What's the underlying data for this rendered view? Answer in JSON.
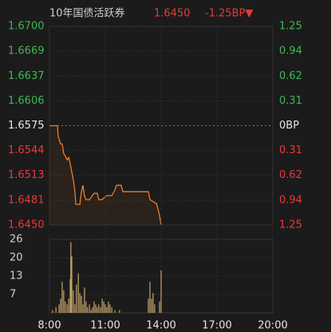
{
  "header": {
    "name": "10年国债活跃券",
    "price": "1.6450",
    "change": "-1.25BP▼"
  },
  "chart_data": [
    {
      "type": "line",
      "up_color": "#3cba54",
      "down_color": "#e83a3a",
      "base": 1.6575,
      "grid": true,
      "series": [
        {
          "color": "#f07c2a",
          "x": [
            "8:00",
            "8:26",
            "8:28",
            "8:36",
            "8:41",
            "8:46",
            "8:51",
            "8:57",
            "9:02",
            "9:07",
            "9:12",
            "9:17",
            "9:22",
            "9:25",
            "9:38",
            "9:43",
            "9:48",
            "9:53",
            "9:58",
            "10:09",
            "10:24",
            "10:34",
            "10:39",
            "10:50",
            "10:55",
            "11:05",
            "11:21",
            "11:31",
            "11:36",
            "11:51",
            "11:57",
            "13:19",
            "13:24",
            "13:45",
            "13:50",
            "13:55",
            "14:00"
          ],
          "values": [
            1.6575,
            1.6575,
            1.6562,
            1.6552,
            1.6552,
            1.654,
            1.6537,
            1.6532,
            1.6535,
            1.6527,
            1.6517,
            1.6507,
            1.6492,
            1.6476,
            1.6476,
            1.6492,
            1.65,
            1.6487,
            1.6482,
            1.6482,
            1.649,
            1.649,
            1.6482,
            1.6482,
            1.6484,
            1.6487,
            1.6487,
            1.6494,
            1.65,
            1.65,
            1.6492,
            1.6492,
            1.6482,
            1.6477,
            1.647,
            1.6462,
            1.645
          ]
        }
      ],
      "xlim": [
        "8:00",
        "20:00"
      ],
      "ylim": [
        1.645,
        1.67
      ],
      "yticks": [
        {
          "value": 1.67,
          "label": "1.6700"
        },
        1.6669,
        1.6637,
        1.6606,
        1.6575,
        1.6544,
        1.6513,
        1.6481,
        {
          "value": 1.645,
          "label": "1.6450"
        }
      ],
      "y2lim": [
        -1.25,
        1.25
      ],
      "y2ticks": [
        1.25,
        0.94,
        0.62,
        0.31,
        {
          "value": 0,
          "label": "0BP"
        },
        {
          "value": -0.31,
          "label": "0.31"
        },
        {
          "value": -0.62,
          "label": "0.62"
        },
        {
          "value": -0.94,
          "label": "0.94"
        },
        {
          "value": -1.25,
          "label": "1.25"
        }
      ]
    },
    {
      "type": "bar",
      "color": "#c9a66b",
      "grid": true,
      "x": [
        "8:10",
        "8:21",
        "8:31",
        "8:36",
        "8:41",
        "8:46",
        "8:51",
        "8:57",
        "9:02",
        "9:07",
        "9:09",
        "9:12",
        "9:17",
        "9:22",
        "9:27",
        "9:33",
        "9:38",
        "9:43",
        "9:48",
        "9:53",
        "9:58",
        "10:03",
        "10:09",
        "10:14",
        "10:19",
        "10:24",
        "10:29",
        "10:34",
        "10:39",
        "10:45",
        "10:50",
        "10:55",
        "11:00",
        "11:05",
        "11:10",
        "11:15",
        "11:21",
        "11:31",
        "11:46",
        "13:19",
        "13:24",
        "13:29",
        "13:34",
        "13:39",
        "13:55",
        "14:00"
      ],
      "values": [
        1,
        2,
        3,
        5,
        11,
        8,
        4,
        3,
        5,
        12,
        25,
        20,
        8,
        3,
        10,
        14,
        7,
        6,
        3,
        9,
        4,
        2,
        3,
        1,
        2,
        4,
        3,
        2,
        3,
        2,
        5,
        4,
        3,
        2,
        4,
        3,
        2,
        1,
        1,
        5,
        11,
        5,
        7,
        3,
        4,
        15
      ],
      "xlim": [
        "8:00",
        "20:00"
      ],
      "xticks": [
        "8:00",
        "11:00",
        "14:00",
        "17:00",
        "20:00"
      ],
      "ylim": [
        0,
        26
      ],
      "yticks": [
        26,
        {
          "value": 19.5,
          "label": "20"
        },
        13,
        {
          "value": 6.5,
          "label": "7"
        }
      ]
    }
  ]
}
